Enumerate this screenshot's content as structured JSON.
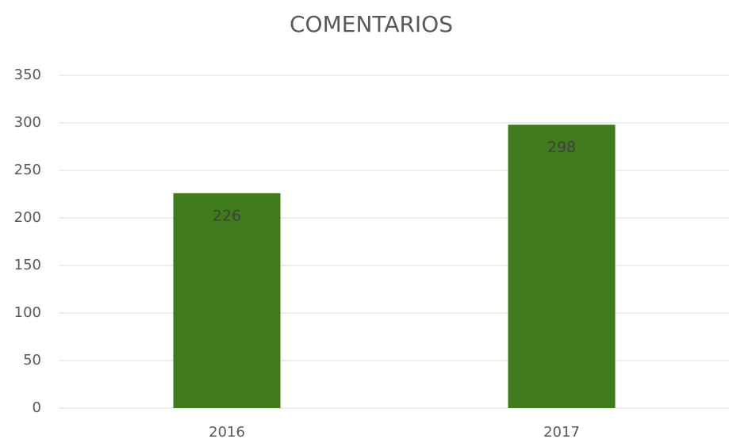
{
  "chart_data": {
    "type": "bar",
    "title": "COMENTARIOS",
    "categories": [
      "2016",
      "2017"
    ],
    "values": [
      226,
      298
    ],
    "color": "#3f7a1c",
    "ylim": [
      0,
      350
    ],
    "yticks": [
      0,
      50,
      100,
      150,
      200,
      250,
      300,
      350
    ],
    "grid": true,
    "data_labels": true
  }
}
